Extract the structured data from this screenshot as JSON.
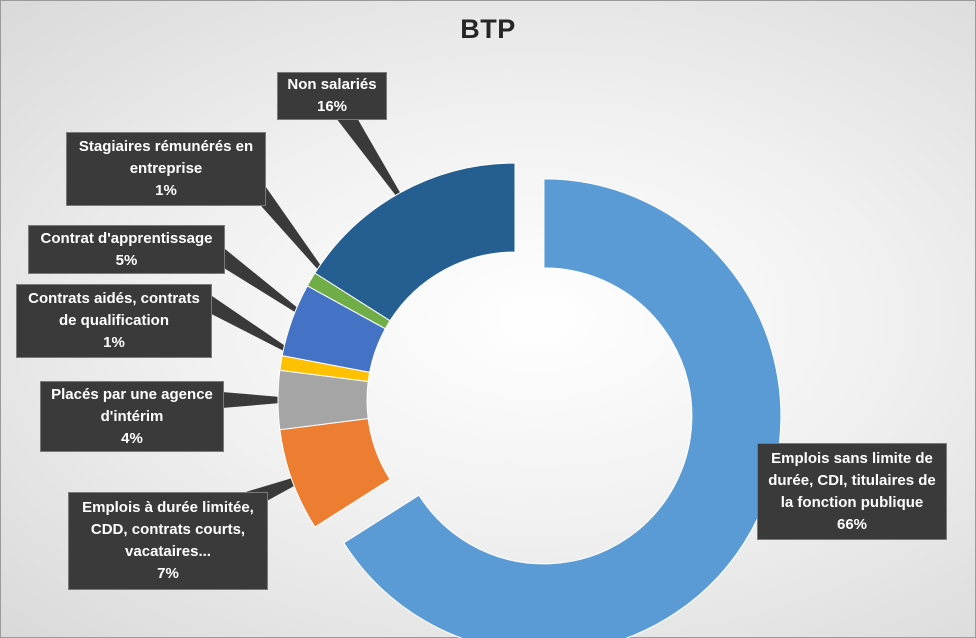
{
  "chart_data": {
    "type": "pie",
    "title": "BTP",
    "slices": [
      {
        "label_lines": [
          "Emplois sans limite de",
          "durée, CDI, titulaires de",
          "la fonction publique"
        ],
        "value": 66,
        "value_label": "66%",
        "color": "#5b9bd5",
        "exploded": true
      },
      {
        "label_lines": [
          "Emplois à durée limitée,",
          "CDD, contrats courts,",
          "vacataires..."
        ],
        "value": 7,
        "value_label": "7%",
        "color": "#ed7d31",
        "exploded": false
      },
      {
        "label_lines": [
          "Placés par une agence",
          "d'intérim"
        ],
        "value": 4,
        "value_label": "4%",
        "color": "#a5a5a5",
        "exploded": false
      },
      {
        "label_lines": [
          "Contrats aidés, contrats",
          "de qualification"
        ],
        "value": 1,
        "value_label": "1%",
        "color": "#ffc000",
        "exploded": false
      },
      {
        "label_lines": [
          "Contrat d'apprentissage"
        ],
        "value": 5,
        "value_label": "5%",
        "color": "#4472c4",
        "exploded": false
      },
      {
        "label_lines": [
          "Stagiaires rémunérés en",
          "entreprise"
        ],
        "value": 1,
        "value_label": "1%",
        "color": "#70ad47",
        "exploded": false
      },
      {
        "label_lines": [
          "Non salariés"
        ],
        "value": 16,
        "value_label": "16%",
        "color": "#255e91",
        "exploded": false
      }
    ]
  }
}
